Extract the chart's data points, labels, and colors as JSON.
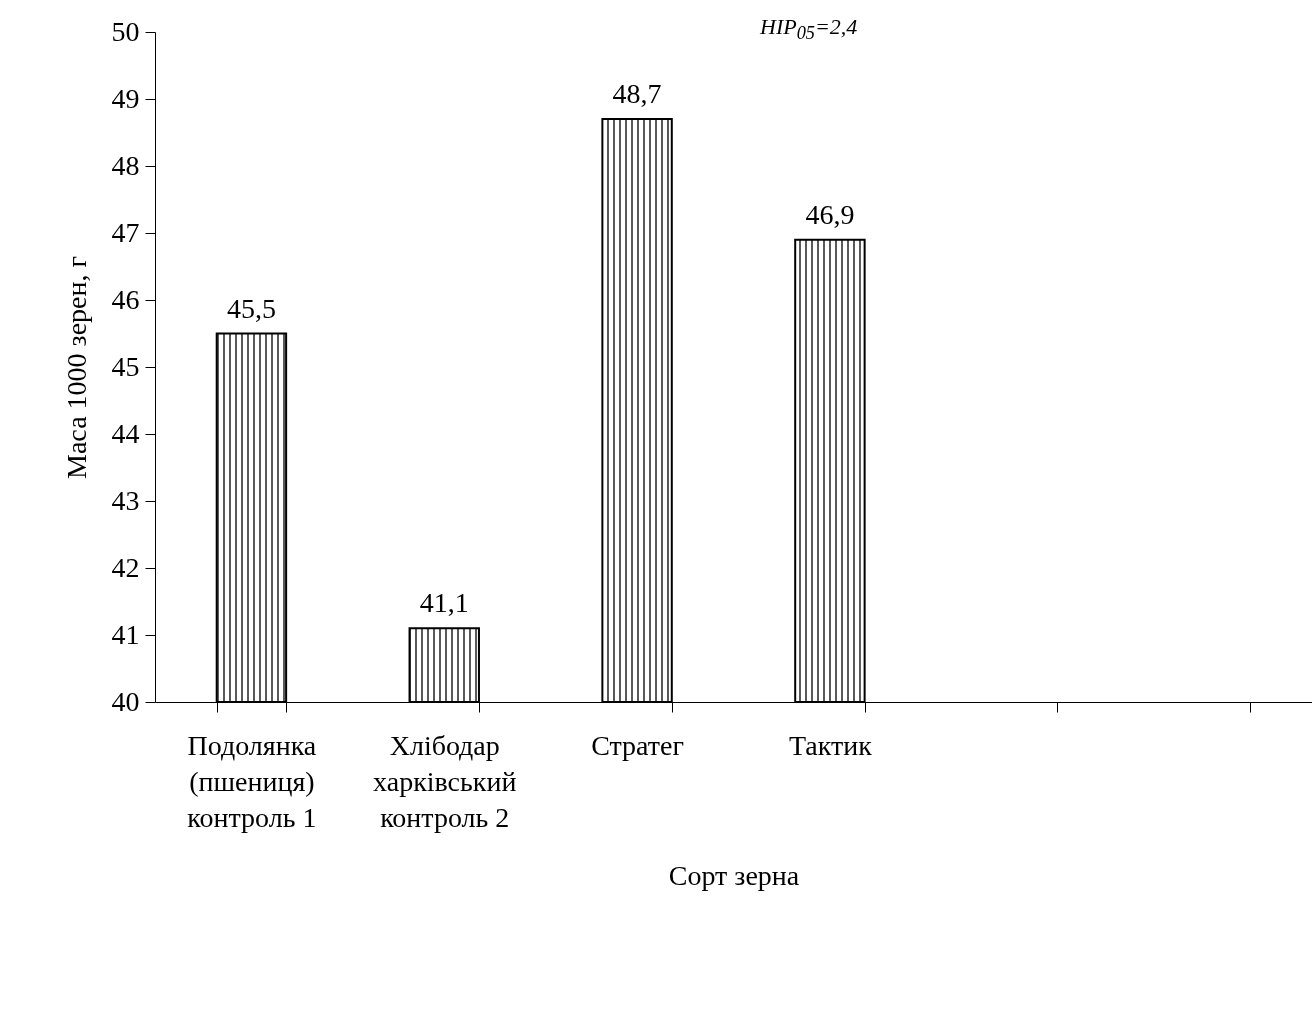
{
  "chart_data": {
    "type": "bar",
    "xlabel": "Сорт зерна",
    "ylabel": "Маса 1000 зерен, г",
    "annotations": [
      "HIP$_{05}$=2,4"
    ],
    "categories": [
      "Подолянка (пшениця) контроль 1",
      "Хлібодар харківський контроль 2",
      "Стратег",
      "Тактик",
      null,
      null
    ],
    "values": [
      45.5,
      41.1,
      48.7,
      46.9,
      null,
      null
    ],
    "value_labels": [
      "45,5",
      "41,1",
      "48,7",
      "46,9",
      null,
      null
    ],
    "color": "#000000",
    "ylim": [
      40,
      50
    ],
    "yticks": [
      40,
      41,
      42,
      43,
      44,
      45,
      46,
      47,
      48,
      49,
      50
    ],
    "grid": false
  }
}
